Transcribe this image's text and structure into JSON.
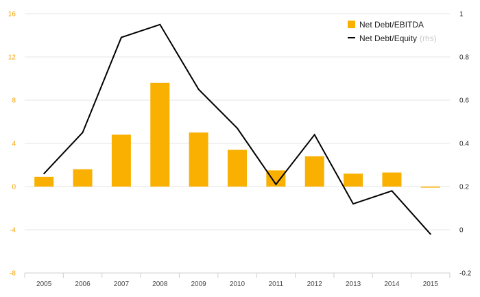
{
  "chart_data": {
    "type": "bar",
    "categories": [
      "2005",
      "2006",
      "2007",
      "2008",
      "2009",
      "2010",
      "2011",
      "2012",
      "2013",
      "2014",
      "2015"
    ],
    "series": [
      {
        "name": "Net Debt/EBITDA",
        "type": "bar",
        "axis": "left",
        "color": "#f9b000",
        "values": [
          0.9,
          1.6,
          4.8,
          9.6,
          5.0,
          3.4,
          1.5,
          2.8,
          1.2,
          1.3,
          -0.1
        ]
      },
      {
        "name": "Net Debt/Equity",
        "name_note": "(rhs)",
        "type": "line",
        "axis": "right",
        "color": "#000000",
        "values": [
          0.26,
          0.45,
          0.89,
          0.95,
          0.65,
          0.47,
          0.21,
          0.44,
          0.12,
          0.18,
          -0.02
        ]
      }
    ],
    "y_left": {
      "min": -8,
      "max": 16,
      "ticks": [
        -8,
        -4,
        0,
        4,
        8,
        12,
        16
      ],
      "tick_labels": [
        "-8",
        "-4",
        "0",
        "4",
        "8",
        "12",
        "16"
      ],
      "color": "#f4a300"
    },
    "y_right": {
      "min": -0.2,
      "max": 1.0,
      "ticks": [
        -0.2,
        0,
        0.2,
        0.4,
        0.6,
        0.8,
        1.0
      ],
      "tick_labels": [
        "-0.2",
        "0",
        "0.2",
        "0.4",
        "0.6",
        "0.8",
        "1"
      ],
      "color": "#222222"
    },
    "grid": true,
    "legend_position": "top-right"
  }
}
